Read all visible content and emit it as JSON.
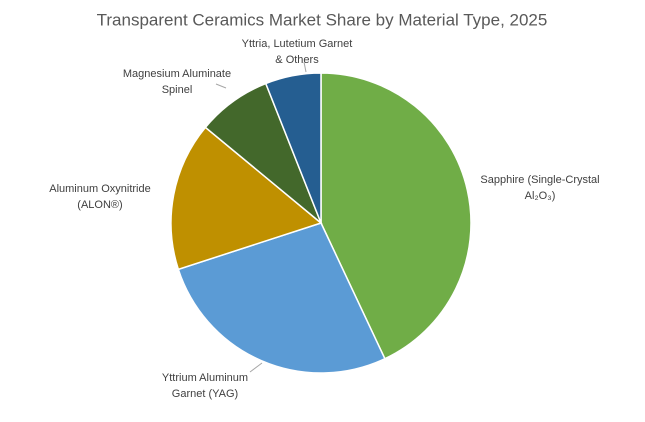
{
  "chart_data": {
    "type": "pie",
    "title": "Transparent Ceramics Market Share by Material Type, 2025",
    "categories": [
      [
        "Sapphire (Single-Crystal",
        "Al₂O₃)"
      ],
      [
        "Yttrium Aluminum",
        "Garnet (YAG)"
      ],
      [
        "Aluminum Oxynitride",
        "(ALON®)"
      ],
      [
        "Magnesium Aluminate",
        "Spinel"
      ],
      [
        "Yttria, Lutetium Garnet",
        "& Others"
      ]
    ],
    "values": [
      43,
      27,
      16,
      8,
      6
    ],
    "colors": [
      "#70ad47",
      "#5b9bd5",
      "#bf9000",
      "#43682b",
      "#255e91"
    ]
  }
}
